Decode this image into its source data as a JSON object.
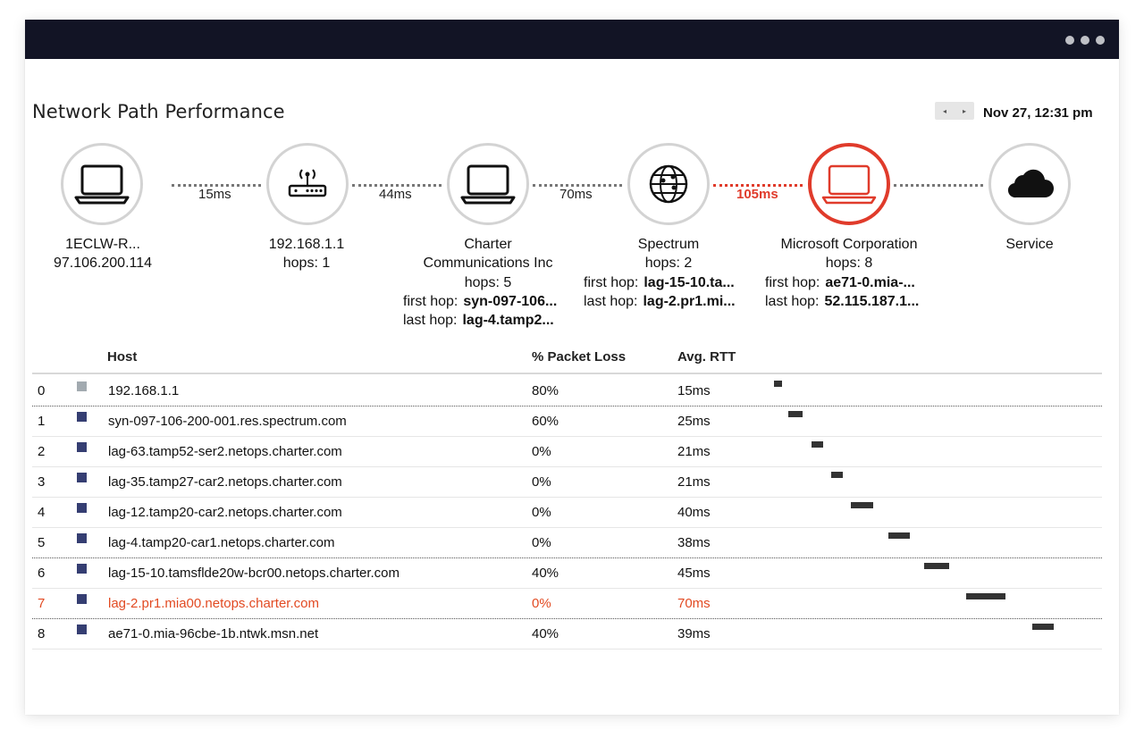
{
  "panel": {
    "title": "Network Path Performance",
    "prev_label": "◂",
    "next_label": "▸",
    "timestamp": "Nov 27, 12:31 pm"
  },
  "path": {
    "nodes": [
      {
        "icon": "laptop-icon",
        "name": "1ECLW-R...",
        "sub": "97.106.200.114",
        "color": "#ffffff"
      },
      {
        "icon": "router-icon",
        "name": "192.168.1.1",
        "sub": "hops: 1",
        "color": "#a8c8ee"
      },
      {
        "icon": "laptop-icon",
        "name": "Charter",
        "name2": "Communications Inc",
        "sub": "hops: 5",
        "first_hop_label": "first hop:",
        "first_hop": "syn-097-106...",
        "last_hop_label": "last hop:",
        "last_hop": "lag-4.tamp2...",
        "color": "#f0df82"
      },
      {
        "icon": "globe-icon",
        "name": "Spectrum",
        "sub": "hops: 2",
        "first_hop_label": "first hop:",
        "first_hop": "lag-15-10.ta...",
        "last_hop_label": "last hop:",
        "last_hop": "lag-2.pr1.mi...",
        "color": "#a6dbb4"
      },
      {
        "icon": "laptop-icon",
        "name": "Microsoft Corporation",
        "sub": "hops: 8",
        "first_hop_label": "first hop:",
        "first_hop": "ae71-0.mia-...",
        "last_hop_label": "last hop:",
        "last_hop": "52.115.187.1...",
        "color": "#b7b5de",
        "alert_border": "#e03b2b"
      },
      {
        "icon": "cloud-icon",
        "name": "Service",
        "color": "#b7b5de"
      }
    ],
    "latencies": [
      "15ms",
      "44ms",
      "70ms",
      "105ms",
      ""
    ],
    "alert_color": "#e03b2b"
  },
  "table": {
    "headers": {
      "host": "Host",
      "loss": "% Packet Loss",
      "rtt": "Avg. RTT"
    },
    "rows": [
      {
        "idx": "0",
        "host": "192.168.1.1",
        "loss": "80%",
        "rtt": "15ms",
        "square_color": "#a2aab0",
        "rtt_start_ms": 0,
        "rtt_dur_ms": 15
      },
      {
        "idx": "1",
        "host": "syn-097-106-200-001.res.spectrum.com",
        "loss": "60%",
        "rtt": "25ms",
        "square_color": "#353e72",
        "rtt_start_ms": 15,
        "rtt_dur_ms": 25
      },
      {
        "idx": "2",
        "host": "lag-63.tamp52-ser2.netops.charter.com",
        "loss": "0%",
        "rtt": "21ms",
        "square_color": "#353e72",
        "rtt_start_ms": 40,
        "rtt_dur_ms": 21
      },
      {
        "idx": "3",
        "host": "lag-35.tamp27-car2.netops.charter.com",
        "loss": "0%",
        "rtt": "21ms",
        "square_color": "#353e72",
        "rtt_start_ms": 61,
        "rtt_dur_ms": 21
      },
      {
        "idx": "4",
        "host": "lag-12.tamp20-car2.netops.charter.com",
        "loss": "0%",
        "rtt": "40ms",
        "square_color": "#353e72",
        "rtt_start_ms": 82,
        "rtt_dur_ms": 40
      },
      {
        "idx": "5",
        "host": "lag-4.tamp20-car1.netops.charter.com",
        "loss": "0%",
        "rtt": "38ms",
        "square_color": "#353e72",
        "rtt_start_ms": 122,
        "rtt_dur_ms": 38
      },
      {
        "idx": "6",
        "host": "lag-15-10.tamsflde20w-bcr00.netops.charter.com",
        "loss": "40%",
        "rtt": "45ms",
        "square_color": "#353e72",
        "rtt_start_ms": 160,
        "rtt_dur_ms": 45
      },
      {
        "idx": "7",
        "host": "lag-2.pr1.mia00.netops.charter.com",
        "loss": "0%",
        "rtt": "70ms",
        "square_color": "#353e72",
        "rtt_start_ms": 205,
        "rtt_dur_ms": 70,
        "alert": true
      },
      {
        "idx": "8",
        "host": "ae71-0.mia-96cbe-1b.ntwk.msn.net",
        "loss": "40%",
        "rtt": "39ms",
        "square_color": "#353e72",
        "rtt_start_ms": 275,
        "rtt_dur_ms": 39
      }
    ]
  }
}
